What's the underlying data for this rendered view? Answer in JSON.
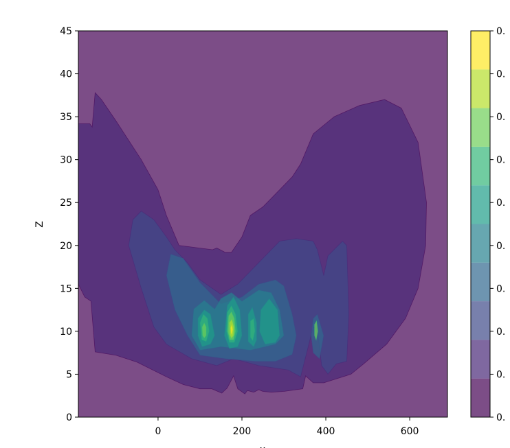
{
  "chart_data": {
    "type": "contour",
    "xlabel": "x",
    "ylabel": "Z",
    "xlim": [
      -190,
      690
    ],
    "ylim": [
      0,
      45
    ],
    "x_ticks": [
      0,
      200,
      400,
      600
    ],
    "y_ticks": [
      0,
      5,
      10,
      15,
      20,
      25,
      30,
      35,
      40,
      45
    ],
    "colorbar": {
      "tick_labels": [
        "0.",
        "0.",
        "0.",
        "0.",
        "0.",
        "0.",
        "0.",
        "0.",
        "0.",
        "0."
      ],
      "level_colors": [
        "#440154",
        "#482878",
        "#3e4a89",
        "#31688e",
        "#26828e",
        "#1f9e89",
        "#35b779",
        "#6ece58",
        "#b5de2b",
        "#fde725"
      ],
      "alpha": 0.7
    },
    "regions": [
      {
        "level": 0,
        "points": [
          [
            -190,
            0
          ],
          [
            690,
            0
          ],
          [
            690,
            45
          ],
          [
            -190,
            45
          ]
        ]
      },
      {
        "level": 1,
        "points": [
          [
            -190,
            34.2
          ],
          [
            -163,
            34.2
          ],
          [
            -157,
            33.8
          ],
          [
            -150,
            37.8
          ],
          [
            -135,
            37
          ],
          [
            -100,
            34.5
          ],
          [
            -40,
            30
          ],
          [
            0,
            26.5
          ],
          [
            20,
            23.5
          ],
          [
            50,
            20
          ],
          [
            130,
            19.5
          ],
          [
            140,
            19.7
          ],
          [
            160,
            19.2
          ],
          [
            175,
            19.2
          ],
          [
            200,
            21
          ],
          [
            220,
            23.5
          ],
          [
            250,
            24.5
          ],
          [
            290,
            26.5
          ],
          [
            320,
            28
          ],
          [
            340,
            29.5
          ],
          [
            370,
            33
          ],
          [
            420,
            35
          ],
          [
            480,
            36.3
          ],
          [
            540,
            37
          ],
          [
            580,
            36
          ],
          [
            620,
            32
          ],
          [
            640,
            25
          ],
          [
            638,
            20
          ],
          [
            620,
            15
          ],
          [
            590,
            11.5
          ],
          [
            545,
            8.5
          ],
          [
            490,
            6.2
          ],
          [
            460,
            5
          ],
          [
            395,
            4
          ],
          [
            370,
            4
          ],
          [
            352,
            4.8
          ],
          [
            345,
            3.3
          ],
          [
            300,
            3
          ],
          [
            270,
            2.9
          ],
          [
            250,
            3
          ],
          [
            240,
            3.2
          ],
          [
            228,
            2.9
          ],
          [
            213,
            3.1
          ],
          [
            207,
            2.7
          ],
          [
            190,
            3.3
          ],
          [
            180,
            4.8
          ],
          [
            165,
            3.4
          ],
          [
            152,
            2.8
          ],
          [
            128,
            3.3
          ],
          [
            100,
            3.3
          ],
          [
            60,
            3.8
          ],
          [
            20,
            4.7
          ],
          [
            -50,
            6.4
          ],
          [
            -100,
            7.2
          ],
          [
            -150,
            7.6
          ],
          [
            -160,
            13.5
          ],
          [
            -175,
            14
          ],
          [
            -190,
            15.5
          ]
        ]
      },
      {
        "level": 2,
        "points": [
          [
            -70,
            20
          ],
          [
            -60,
            23
          ],
          [
            -40,
            24
          ],
          [
            -10,
            23
          ],
          [
            20,
            21
          ],
          [
            40,
            19.5
          ],
          [
            70,
            18
          ],
          [
            100,
            16
          ],
          [
            150,
            14.3
          ],
          [
            190,
            15.5
          ],
          [
            230,
            17.5
          ],
          [
            260,
            19
          ],
          [
            290,
            20.5
          ],
          [
            330,
            20.8
          ],
          [
            370,
            20.5
          ],
          [
            380,
            19.5
          ],
          [
            395,
            16.5
          ],
          [
            405,
            18.8
          ],
          [
            440,
            20.5
          ],
          [
            450,
            20
          ],
          [
            455,
            12
          ],
          [
            450,
            6.5
          ],
          [
            425,
            6.2
          ],
          [
            405,
            5
          ],
          [
            390,
            6
          ],
          [
            380,
            10.3
          ],
          [
            370,
            10.5
          ],
          [
            340,
            4.7
          ],
          [
            310,
            5.5
          ],
          [
            240,
            6
          ],
          [
            180,
            6.8
          ],
          [
            140,
            6
          ],
          [
            80,
            6.8
          ],
          [
            20,
            8.5
          ],
          [
            -10,
            10.5
          ],
          [
            -40,
            15
          ]
        ]
      },
      {
        "level": 3,
        "points": [
          [
            20,
            16.5
          ],
          [
            30,
            19
          ],
          [
            60,
            18.5
          ],
          [
            100,
            15.7
          ],
          [
            150,
            13.2
          ],
          [
            200,
            14
          ],
          [
            240,
            15.5
          ],
          [
            280,
            16
          ],
          [
            300,
            15.3
          ],
          [
            320,
            12
          ],
          [
            330,
            9.5
          ],
          [
            320,
            7.3
          ],
          [
            280,
            6.5
          ],
          [
            230,
            6.5
          ],
          [
            160,
            6.8
          ],
          [
            100,
            7.2
          ],
          [
            70,
            9.5
          ],
          [
            40,
            12.5
          ]
        ]
      },
      {
        "level": 3,
        "points": [
          [
            370,
            11.5
          ],
          [
            380,
            12
          ],
          [
            395,
            9.5
          ],
          [
            385,
            6.8
          ],
          [
            370,
            7.5
          ],
          [
            365,
            9.5
          ]
        ]
      },
      {
        "level": 4,
        "points": [
          [
            85,
            12.6
          ],
          [
            110,
            13.6
          ],
          [
            135,
            12.6
          ],
          [
            150,
            13.8
          ],
          [
            175,
            14.5
          ],
          [
            200,
            13.5
          ],
          [
            240,
            14.8
          ],
          [
            270,
            14.5
          ],
          [
            290,
            12.5
          ],
          [
            300,
            9.5
          ],
          [
            280,
            8.5
          ],
          [
            220,
            7.8
          ],
          [
            150,
            8.2
          ],
          [
            100,
            7.8
          ],
          [
            80,
            9.5
          ]
        ]
      },
      {
        "level": 5,
        "points": [
          [
            95,
            11.5
          ],
          [
            110,
            12.5
          ],
          [
            125,
            12
          ],
          [
            135,
            9.5
          ],
          [
            125,
            8.5
          ],
          [
            105,
            8.2
          ],
          [
            95,
            9.5
          ]
        ]
      },
      {
        "level": 5,
        "points": [
          [
            165,
            13
          ],
          [
            180,
            14
          ],
          [
            195,
            12.5
          ],
          [
            200,
            9.5
          ],
          [
            190,
            8.2
          ],
          [
            170,
            8
          ],
          [
            158,
            9.5
          ]
        ]
      },
      {
        "level": 5,
        "points": [
          [
            215,
            12
          ],
          [
            225,
            12.8
          ],
          [
            235,
            11
          ],
          [
            235,
            9
          ],
          [
            228,
            8.2
          ],
          [
            215,
            8.8
          ]
        ]
      },
      {
        "level": 5,
        "points": [
          [
            245,
            12.5
          ],
          [
            265,
            13.8
          ],
          [
            285,
            12.5
          ],
          [
            290,
            9.5
          ],
          [
            280,
            8.7
          ],
          [
            255,
            8.5
          ],
          [
            242,
            10
          ]
        ]
      },
      {
        "level": 6,
        "points": [
          [
            100,
            11
          ],
          [
            108,
            12
          ],
          [
            118,
            11.5
          ],
          [
            122,
            10
          ],
          [
            115,
            8.8
          ],
          [
            104,
            9
          ]
        ]
      },
      {
        "level": 6,
        "points": [
          [
            165,
            12.2
          ],
          [
            175,
            13
          ],
          [
            185,
            12
          ],
          [
            190,
            10
          ],
          [
            182,
            8.7
          ],
          [
            170,
            8.7
          ],
          [
            163,
            10
          ]
        ]
      },
      {
        "level": 6,
        "points": [
          [
            220,
            11.2
          ],
          [
            228,
            11.5
          ],
          [
            231,
            10
          ],
          [
            226,
            8.9
          ],
          [
            220,
            9.3
          ]
        ]
      },
      {
        "level": 7,
        "points": [
          [
            105,
            10.5
          ],
          [
            110,
            11
          ],
          [
            115,
            10.5
          ],
          [
            115,
            9.5
          ],
          [
            110,
            9.2
          ],
          [
            106,
            9.5
          ]
        ]
      },
      {
        "level": 7,
        "points": [
          [
            168,
            11.8
          ],
          [
            175,
            12.3
          ],
          [
            182,
            11.5
          ],
          [
            185,
            10
          ],
          [
            180,
            9
          ],
          [
            171,
            9
          ],
          [
            166,
            10
          ]
        ]
      },
      {
        "level": 7,
        "points": [
          [
            373,
            10.8
          ],
          [
            378,
            11.2
          ],
          [
            381,
            10
          ],
          [
            377,
            9
          ],
          [
            373,
            9.5
          ]
        ]
      },
      {
        "level": 8,
        "points": [
          [
            170,
            11
          ],
          [
            176,
            11.4
          ],
          [
            181,
            10.5
          ],
          [
            180,
            9.5
          ],
          [
            175,
            9.2
          ],
          [
            171,
            9.6
          ]
        ]
      },
      {
        "level": 9,
        "points": [
          [
            173,
            10.4
          ],
          [
            176,
            10.8
          ],
          [
            178,
            10.2
          ],
          [
            176,
            9.6
          ],
          [
            174,
            9.8
          ]
        ]
      }
    ]
  }
}
